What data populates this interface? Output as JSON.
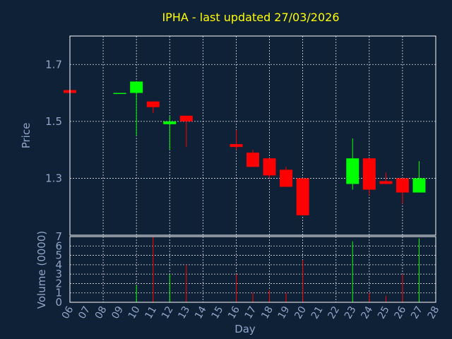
{
  "chart_data": [
    {
      "type": "candlestick",
      "title": "IPHA - last updated 27/03/2026",
      "ylabel": "Price",
      "xlabel": "",
      "ylim": [
        1.1,
        1.8
      ],
      "yticks": [
        "1.3",
        "1.5",
        "1.7"
      ],
      "grid": true,
      "colors": {
        "up": "#00ff00",
        "down": "#ff0000"
      },
      "candles": [
        {
          "day": "06",
          "open": 1.61,
          "high": 1.61,
          "low": 1.6,
          "close": 1.6
        },
        {
          "day": "09",
          "open": 1.6,
          "high": 1.6,
          "low": 1.6,
          "close": 1.6
        },
        {
          "day": "10",
          "open": 1.6,
          "high": 1.64,
          "low": 1.45,
          "close": 1.64
        },
        {
          "day": "11",
          "open": 1.57,
          "high": 1.57,
          "low": 1.53,
          "close": 1.55
        },
        {
          "day": "12",
          "open": 1.49,
          "high": 1.52,
          "low": 1.4,
          "close": 1.5
        },
        {
          "day": "13",
          "open": 1.52,
          "high": 1.52,
          "low": 1.41,
          "close": 1.5
        },
        {
          "day": "16",
          "open": 1.42,
          "high": 1.47,
          "low": 1.4,
          "close": 1.41
        },
        {
          "day": "17",
          "open": 1.39,
          "high": 1.4,
          "low": 1.34,
          "close": 1.34
        },
        {
          "day": "18",
          "open": 1.37,
          "high": 1.37,
          "low": 1.3,
          "close": 1.31
        },
        {
          "day": "19",
          "open": 1.33,
          "high": 1.34,
          "low": 1.27,
          "close": 1.27
        },
        {
          "day": "20",
          "open": 1.3,
          "high": 1.3,
          "low": 1.17,
          "close": 1.17
        },
        {
          "day": "23",
          "open": 1.28,
          "high": 1.44,
          "low": 1.26,
          "close": 1.37
        },
        {
          "day": "24",
          "open": 1.37,
          "high": 1.37,
          "low": 1.24,
          "close": 1.26
        },
        {
          "day": "25",
          "open": 1.29,
          "high": 1.32,
          "low": 1.28,
          "close": 1.28
        },
        {
          "day": "26",
          "open": 1.3,
          "high": 1.3,
          "low": 1.21,
          "close": 1.25
        },
        {
          "day": "27",
          "open": 1.25,
          "high": 1.36,
          "low": 1.25,
          "close": 1.3
        }
      ]
    },
    {
      "type": "bar",
      "ylabel": "Volume (0000)",
      "xlabel": "Day",
      "ylim": [
        0,
        7
      ],
      "yticks": [
        "0",
        "1",
        "2",
        "3",
        "4",
        "5",
        "6",
        "7"
      ],
      "x_ticks": [
        "06",
        "07",
        "08",
        "09",
        "10",
        "11",
        "12",
        "13",
        "14",
        "15",
        "16",
        "17",
        "18",
        "19",
        "20",
        "21",
        "22",
        "23",
        "24",
        "25",
        "26",
        "27",
        "28"
      ],
      "grid": true,
      "bars": [
        {
          "day": "10",
          "value": 1.8,
          "color": "#00ff00"
        },
        {
          "day": "11",
          "value": 7.0,
          "color": "#ff0000"
        },
        {
          "day": "12",
          "value": 3.0,
          "color": "#00ff00"
        },
        {
          "day": "13",
          "value": 4.0,
          "color": "#ff0000"
        },
        {
          "day": "16",
          "value": 3.0,
          "color": "#ff0000"
        },
        {
          "day": "17",
          "value": 1.0,
          "color": "#ff0000"
        },
        {
          "day": "18",
          "value": 1.3,
          "color": "#ff0000"
        },
        {
          "day": "19",
          "value": 1.0,
          "color": "#ff0000"
        },
        {
          "day": "20",
          "value": 4.5,
          "color": "#ff0000"
        },
        {
          "day": "23",
          "value": 6.5,
          "color": "#00ff00"
        },
        {
          "day": "24",
          "value": 1.0,
          "color": "#ff0000"
        },
        {
          "day": "25",
          "value": 0.7,
          "color": "#ff0000"
        },
        {
          "day": "26",
          "value": 3.0,
          "color": "#ff0000"
        },
        {
          "day": "27",
          "value": 6.8,
          "color": "#00ff00"
        }
      ]
    }
  ]
}
